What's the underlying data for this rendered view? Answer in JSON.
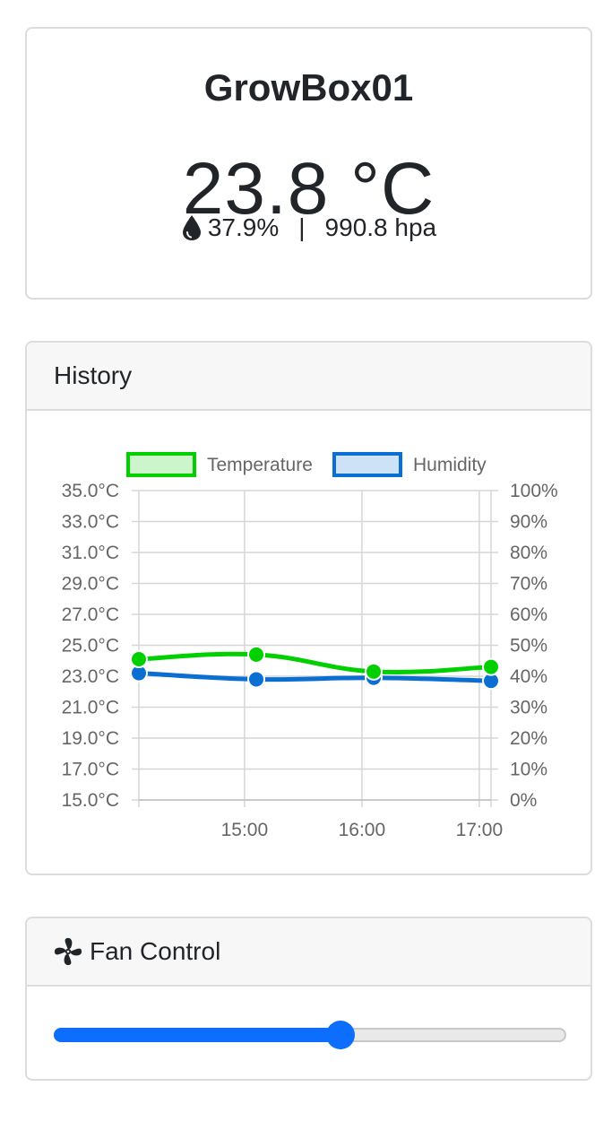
{
  "status": {
    "device_name": "GrowBox01",
    "temperature": "23.8 °C",
    "humidity": "37.9%",
    "separator": "|",
    "pressure": "990.8 hpa",
    "humidity_icon": "water-drop-icon"
  },
  "history": {
    "title": "History"
  },
  "fan": {
    "title": "Fan Control",
    "icon": "fan-icon",
    "level_fraction": 0.56
  },
  "colors": {
    "temperature": "#00d000",
    "humidity": "#0a6fd0",
    "slider": "#0d6efd"
  },
  "chart_data": {
    "type": "line",
    "legend_position": "top",
    "grid": true,
    "x_ticks": [
      "15:00",
      "16:00",
      "17:00"
    ],
    "x_range_hours": [
      14.1,
      17.1
    ],
    "y_left": {
      "range": [
        15,
        35
      ],
      "ticks": [
        "35.0°C",
        "33.0°C",
        "31.0°C",
        "29.0°C",
        "27.0°C",
        "25.0°C",
        "23.0°C",
        "21.0°C",
        "19.0°C",
        "17.0°C",
        "15.0°C"
      ]
    },
    "y_right": {
      "range": [
        0,
        100
      ],
      "ticks": [
        "100%",
        "90%",
        "80%",
        "70%",
        "60%",
        "50%",
        "40%",
        "30%",
        "20%",
        "10%",
        "0%"
      ]
    },
    "series": [
      {
        "name": "Temperature",
        "axis": "left",
        "x": [
          14.1,
          15.1,
          16.1,
          17.1
        ],
        "values": [
          24.1,
          24.4,
          23.3,
          23.6
        ]
      },
      {
        "name": "Humidity",
        "axis": "right",
        "x": [
          14.1,
          15.1,
          16.1,
          17.1
        ],
        "values": [
          41.0,
          39.0,
          39.5,
          38.5
        ]
      }
    ]
  }
}
